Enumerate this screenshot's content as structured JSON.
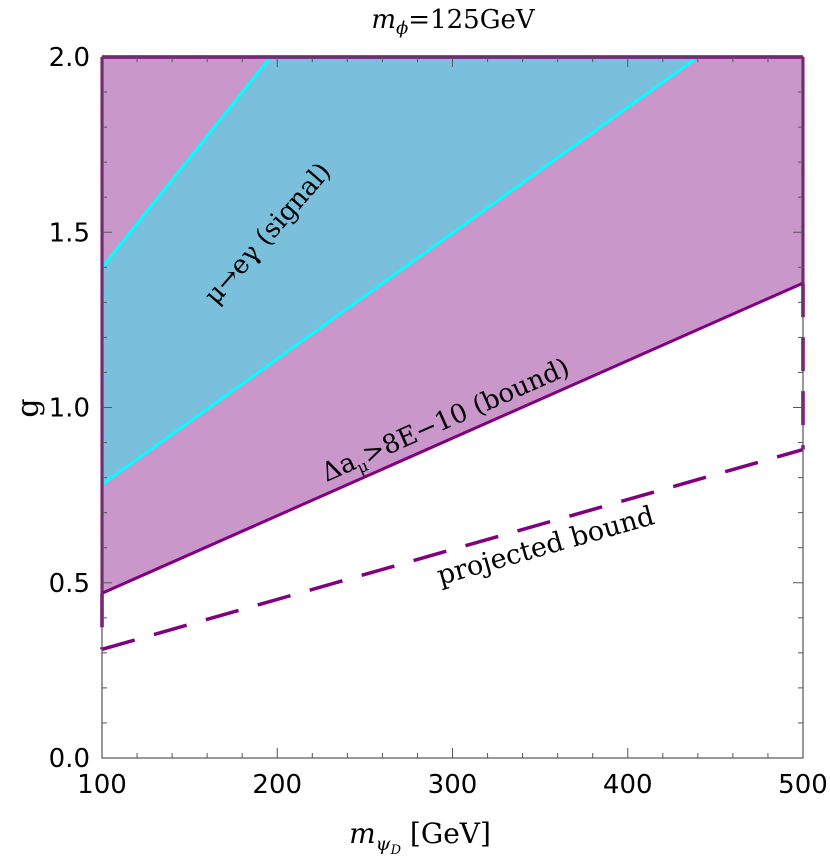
{
  "chart_data": {
    "type": "area",
    "title": "m_φ=125GeV",
    "title_parts": {
      "var": "m",
      "sub": "ϕ",
      "rest": "=125GeV"
    },
    "xlabel": "m_ψD [GeV]",
    "xlabel_parts": {
      "var": "m",
      "sub": "ψ",
      "subsub": "D",
      "rest": " [GeV]"
    },
    "ylabel": "g",
    "xlim": [
      100,
      500
    ],
    "ylim": [
      0.0,
      2.0
    ],
    "x_ticks": [
      "100",
      "200",
      "300",
      "400",
      "500"
    ],
    "y_ticks": [
      "0.0",
      "0.5",
      "1.0",
      "1.5",
      "2.0"
    ],
    "x_tick_values": [
      100,
      200,
      300,
      400,
      500
    ],
    "y_tick_values": [
      0.0,
      0.5,
      1.0,
      1.5,
      2.0
    ],
    "series": [
      {
        "name": "Δa_μ>8E−10 (bound)",
        "kind": "region-above-line",
        "color": "#c997ca",
        "edge_color": "#800080",
        "boundary": {
          "x": [
            100,
            500
          ],
          "y": [
            0.47,
            1.355
          ]
        }
      },
      {
        "name": "μ→eγ (signal)",
        "kind": "band",
        "color": "#7ac0dd",
        "edge_color": "#00ffff",
        "lower": {
          "x": [
            100,
            440
          ],
          "y": [
            0.78,
            2.0
          ]
        },
        "upper": {
          "x": [
            100,
            196
          ],
          "y": [
            1.4,
            2.0
          ]
        }
      },
      {
        "name": "projected bound",
        "kind": "dashed-line",
        "color": "#800080",
        "line": {
          "x": [
            100,
            500
          ],
          "y": [
            0.31,
            0.88
          ]
        }
      }
    ],
    "annotations": {
      "bound": {
        "greek": "Δa",
        "sub": "μ",
        "rest": ">8E−10 (bound)"
      },
      "signal": "μ→eγ (signal)",
      "projected": "projected bound"
    },
    "grid": false,
    "legend": "none"
  }
}
